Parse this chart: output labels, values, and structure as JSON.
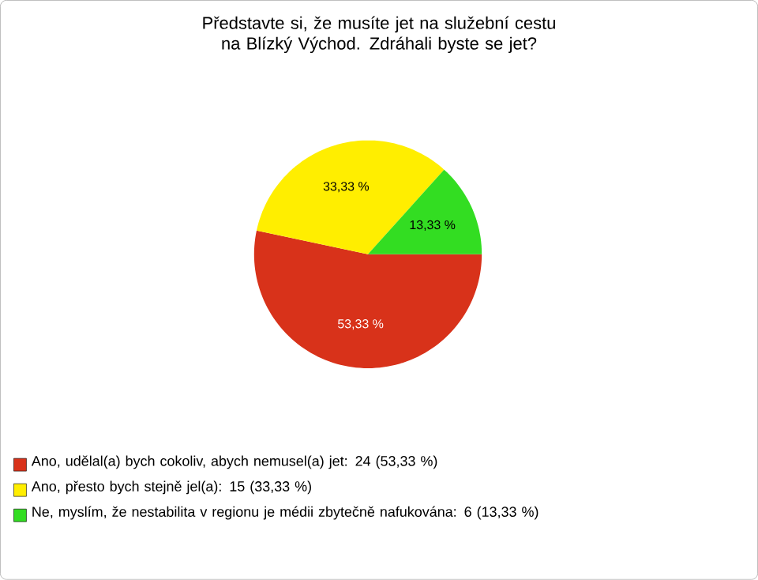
{
  "chart_data": {
    "type": "pie",
    "title": "Představte si, že musíte jet na služební cestu na Blízký Východ. Zdráhali byste se jet?",
    "categories": [
      "Ano, udělal(a) bych cokoliv, abych nemusel(a) jet: 24 (53,33 %)",
      "Ano, přesto bych stejně jel(a): 15 (33,33 %)",
      "Ne, myslím, že nestabilita v regionu je médii zbytečně nafukována: 6 (13,33 %)"
    ],
    "values": [
      53.33,
      33.33,
      13.33
    ],
    "colors": [
      "#d8321a",
      "#ffee00",
      "#33dd22"
    ],
    "value_labels": [
      "53,33 %",
      "33,33 %",
      "13,33 %"
    ],
    "legend": "bottom"
  }
}
